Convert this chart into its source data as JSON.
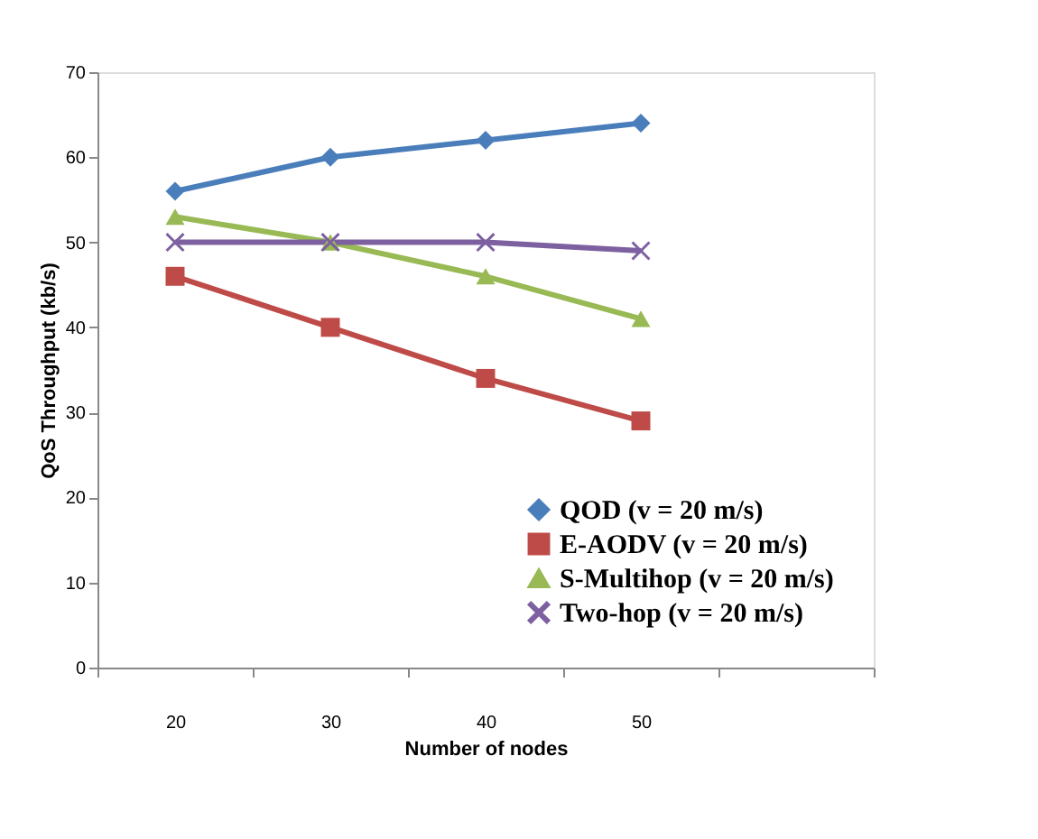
{
  "chart_data": {
    "type": "line",
    "xlabel": "Number of nodes",
    "ylabel": "QoS Throughput (kb/s)",
    "categories": [
      "20",
      "30",
      "40",
      "50",
      null
    ],
    "ylim": [
      0,
      70
    ],
    "yticks": [
      0,
      10,
      20,
      30,
      40,
      50,
      60,
      70
    ],
    "grid": false,
    "legend": "bottom right",
    "series": [
      {
        "name": "QOD (v = 20 m/s)",
        "color": "#4a7ebb",
        "marker": "diamond",
        "values": [
          56,
          60,
          62,
          64,
          null
        ]
      },
      {
        "name": "E-AODV (v = 20 m/s)",
        "color": "#be4b48",
        "marker": "square",
        "values": [
          46,
          40,
          34,
          29,
          null
        ]
      },
      {
        "name": "S-Multihop (v = 20 m/s)",
        "color": "#98b954",
        "marker": "triangle",
        "values": [
          53,
          50,
          46,
          41,
          null
        ]
      },
      {
        "name": "Two-hop (v = 20 m/s)",
        "color": "#7d60a0",
        "marker": "cross",
        "values": [
          50,
          50,
          50,
          49,
          null
        ]
      }
    ]
  }
}
